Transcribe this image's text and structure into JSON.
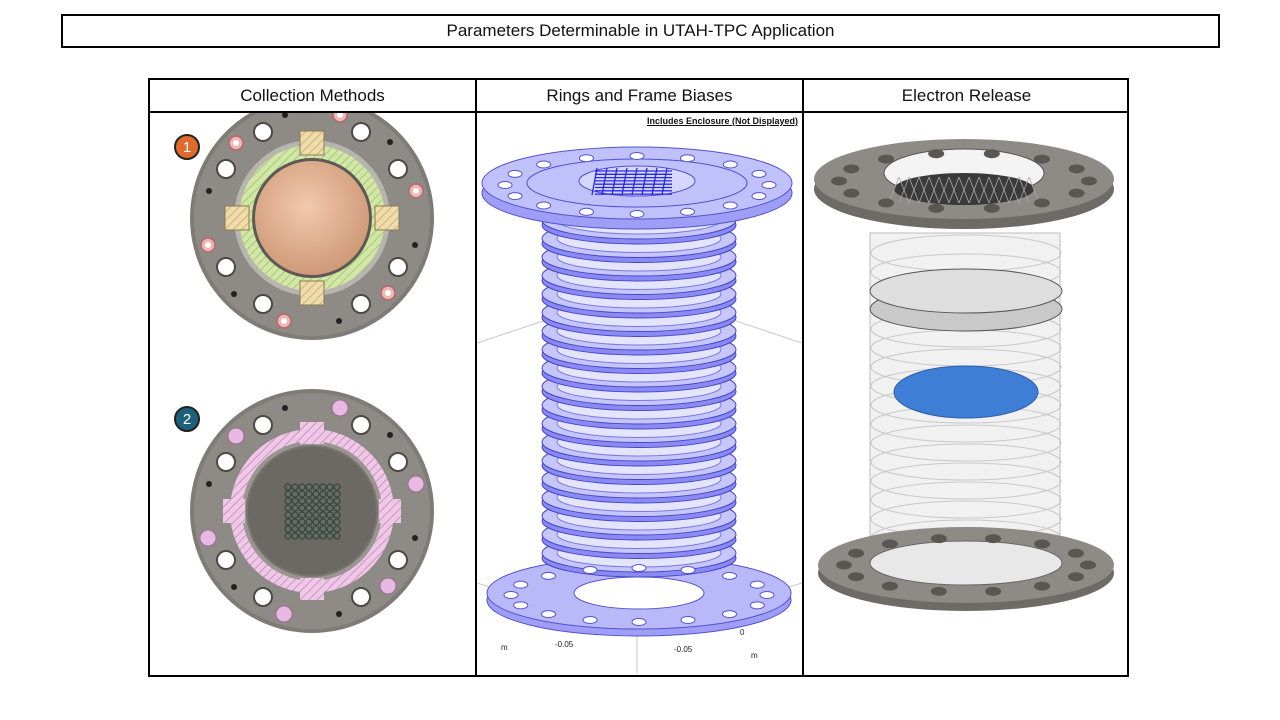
{
  "title": "Parameters Determinable in UTAH-TPC Application",
  "columns": [
    {
      "heading": "Collection Methods"
    },
    {
      "heading": "Rings and Frame Biases"
    },
    {
      "heading": "Electron Release"
    }
  ],
  "collection": {
    "badge1": "1",
    "badge2": "2",
    "badge1_color": "#e06a2a",
    "badge2_color": "#1e5f7c"
  },
  "rings": {
    "note": "Includes Enclosure (Not Displayed)",
    "axis": {
      "unit_left": "m",
      "tick_a": "-0.05",
      "tick_b": "-0.05",
      "tick_zero": "0",
      "unit_bottom": "m"
    },
    "color": "#6f6ff0"
  },
  "release": {
    "plate_color": "#8e8b86",
    "electron_disc_color": "#3f7ed6"
  }
}
